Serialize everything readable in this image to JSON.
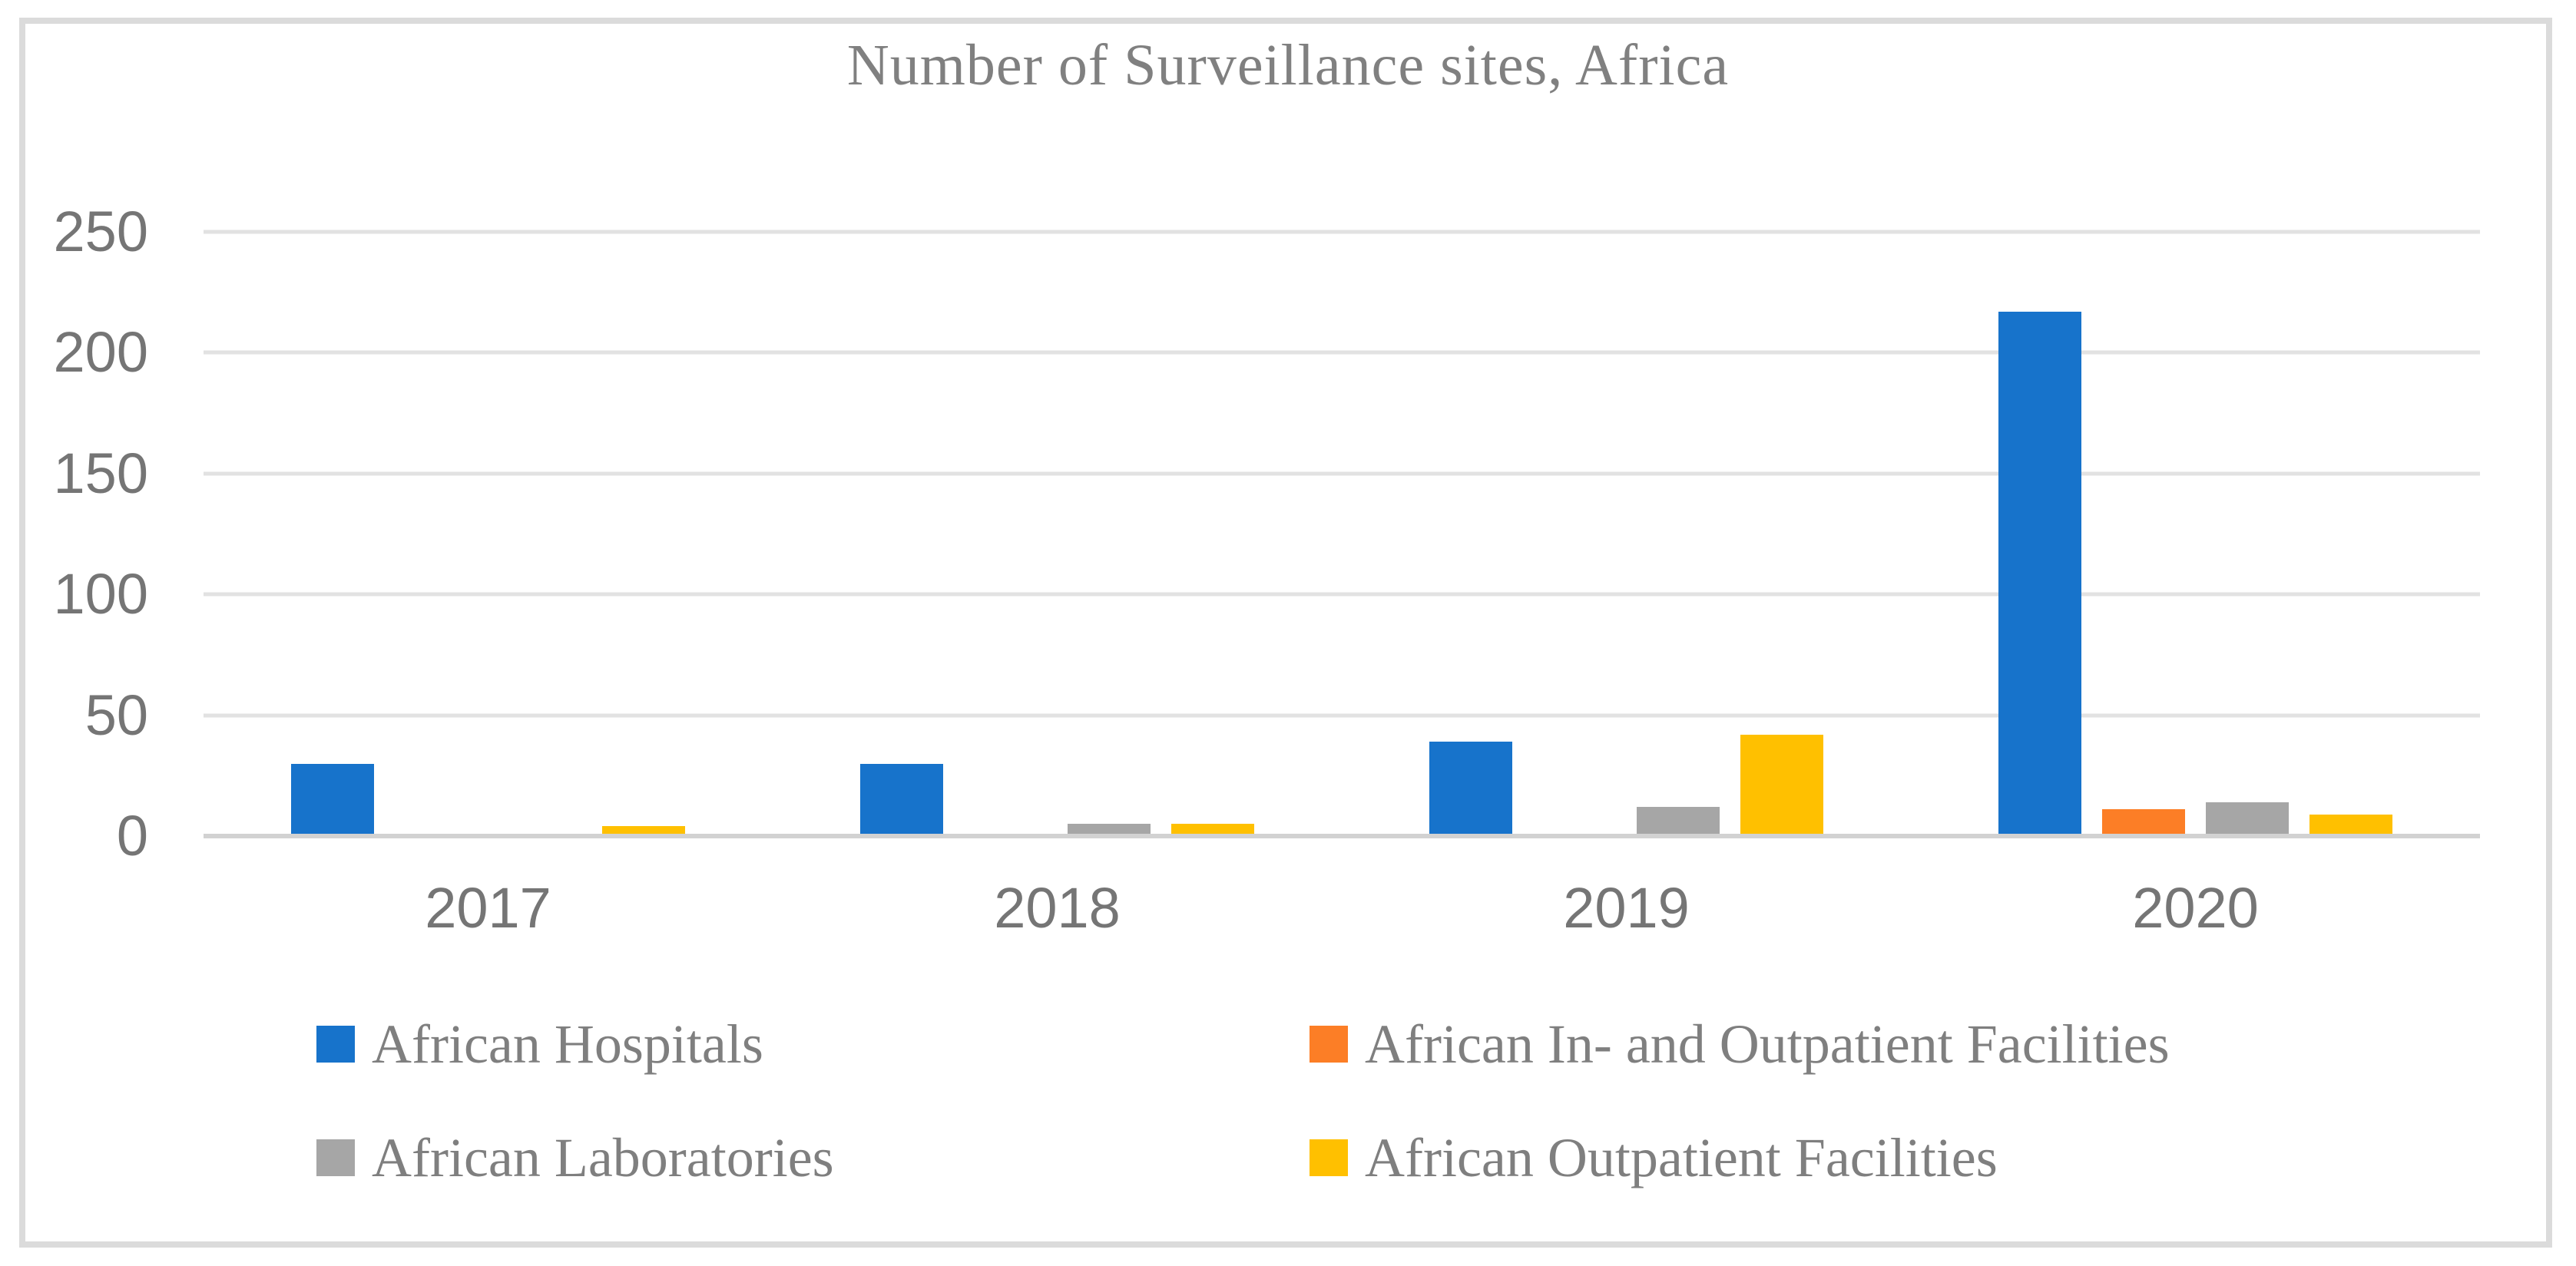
{
  "chart_data": {
    "type": "bar",
    "title": "Number of Surveillance sites, Africa",
    "categories": [
      "2017",
      "2018",
      "2019",
      "2020"
    ],
    "series": [
      {
        "name": "African Hospitals",
        "color": "#1773CB",
        "values": [
          30,
          30,
          39,
          217
        ]
      },
      {
        "name": "African In- and Outpatient Facilities",
        "color": "#FC7E26",
        "values": [
          0,
          0,
          0,
          11
        ]
      },
      {
        "name": "African Laboratories",
        "color": "#A6A6A6",
        "values": [
          0,
          5,
          12,
          14
        ]
      },
      {
        "name": "African Outpatient Facilities",
        "color": "#FFC000",
        "values": [
          4,
          5,
          42,
          9
        ]
      }
    ],
    "xlabel": "",
    "ylabel": "",
    "ylim": [
      0,
      250
    ],
    "yticks": [
      0,
      50,
      100,
      150,
      200,
      250
    ],
    "grid": true,
    "legend_position": "bottom",
    "legend_columns": 2,
    "styles": {
      "title_color": "#808080",
      "axis_label_color": "#757575",
      "legend_text_color": "#7F7F7F",
      "gridline_color": "#E2E2E2",
      "axis_line_color": "#D2D2D2",
      "frame_border_color": "#DBDBDB",
      "background": "#FFFFFF"
    }
  }
}
